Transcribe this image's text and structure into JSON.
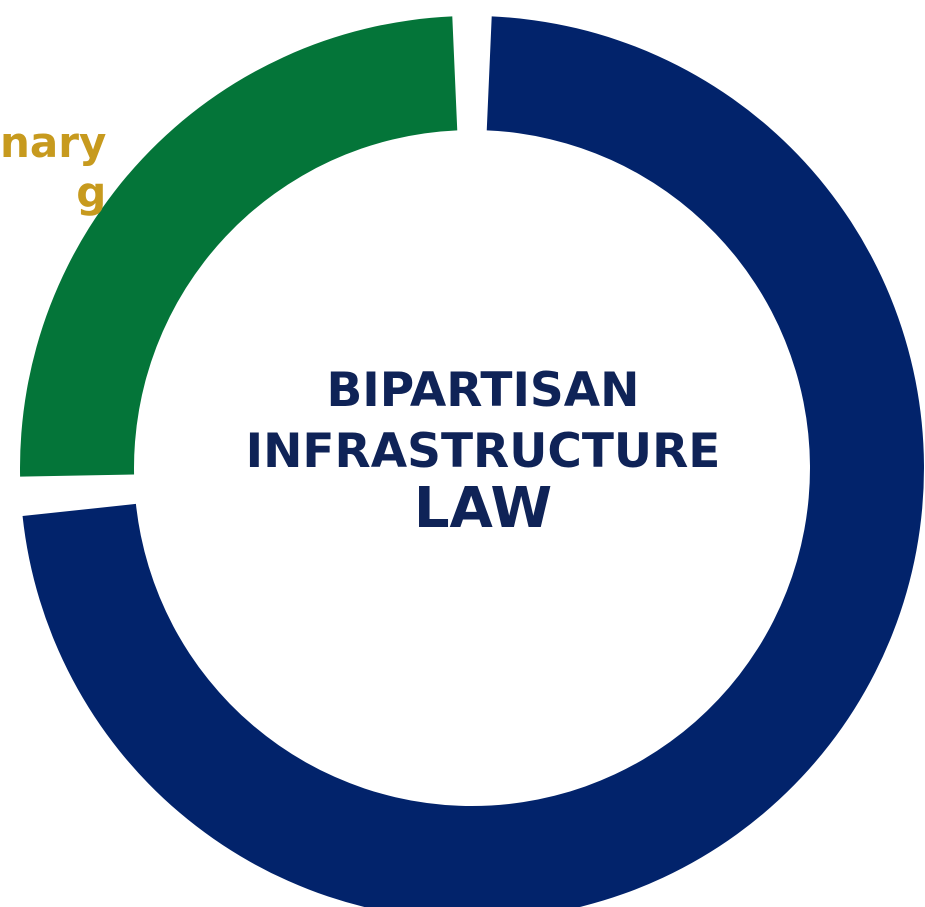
{
  "chart_data": {
    "type": "pie",
    "center_text": [
      "BIPARTISAN",
      "INFRASTRUCTURE",
      "LAW"
    ],
    "slices": [
      {
        "name": "",
        "value": 74,
        "color": "#02236b"
      },
      {
        "name": "",
        "value": 26,
        "color": "#047539"
      }
    ],
    "visible_label_fragments": [
      "nary",
      "g"
    ],
    "label_color": "#c79a1e"
  }
}
